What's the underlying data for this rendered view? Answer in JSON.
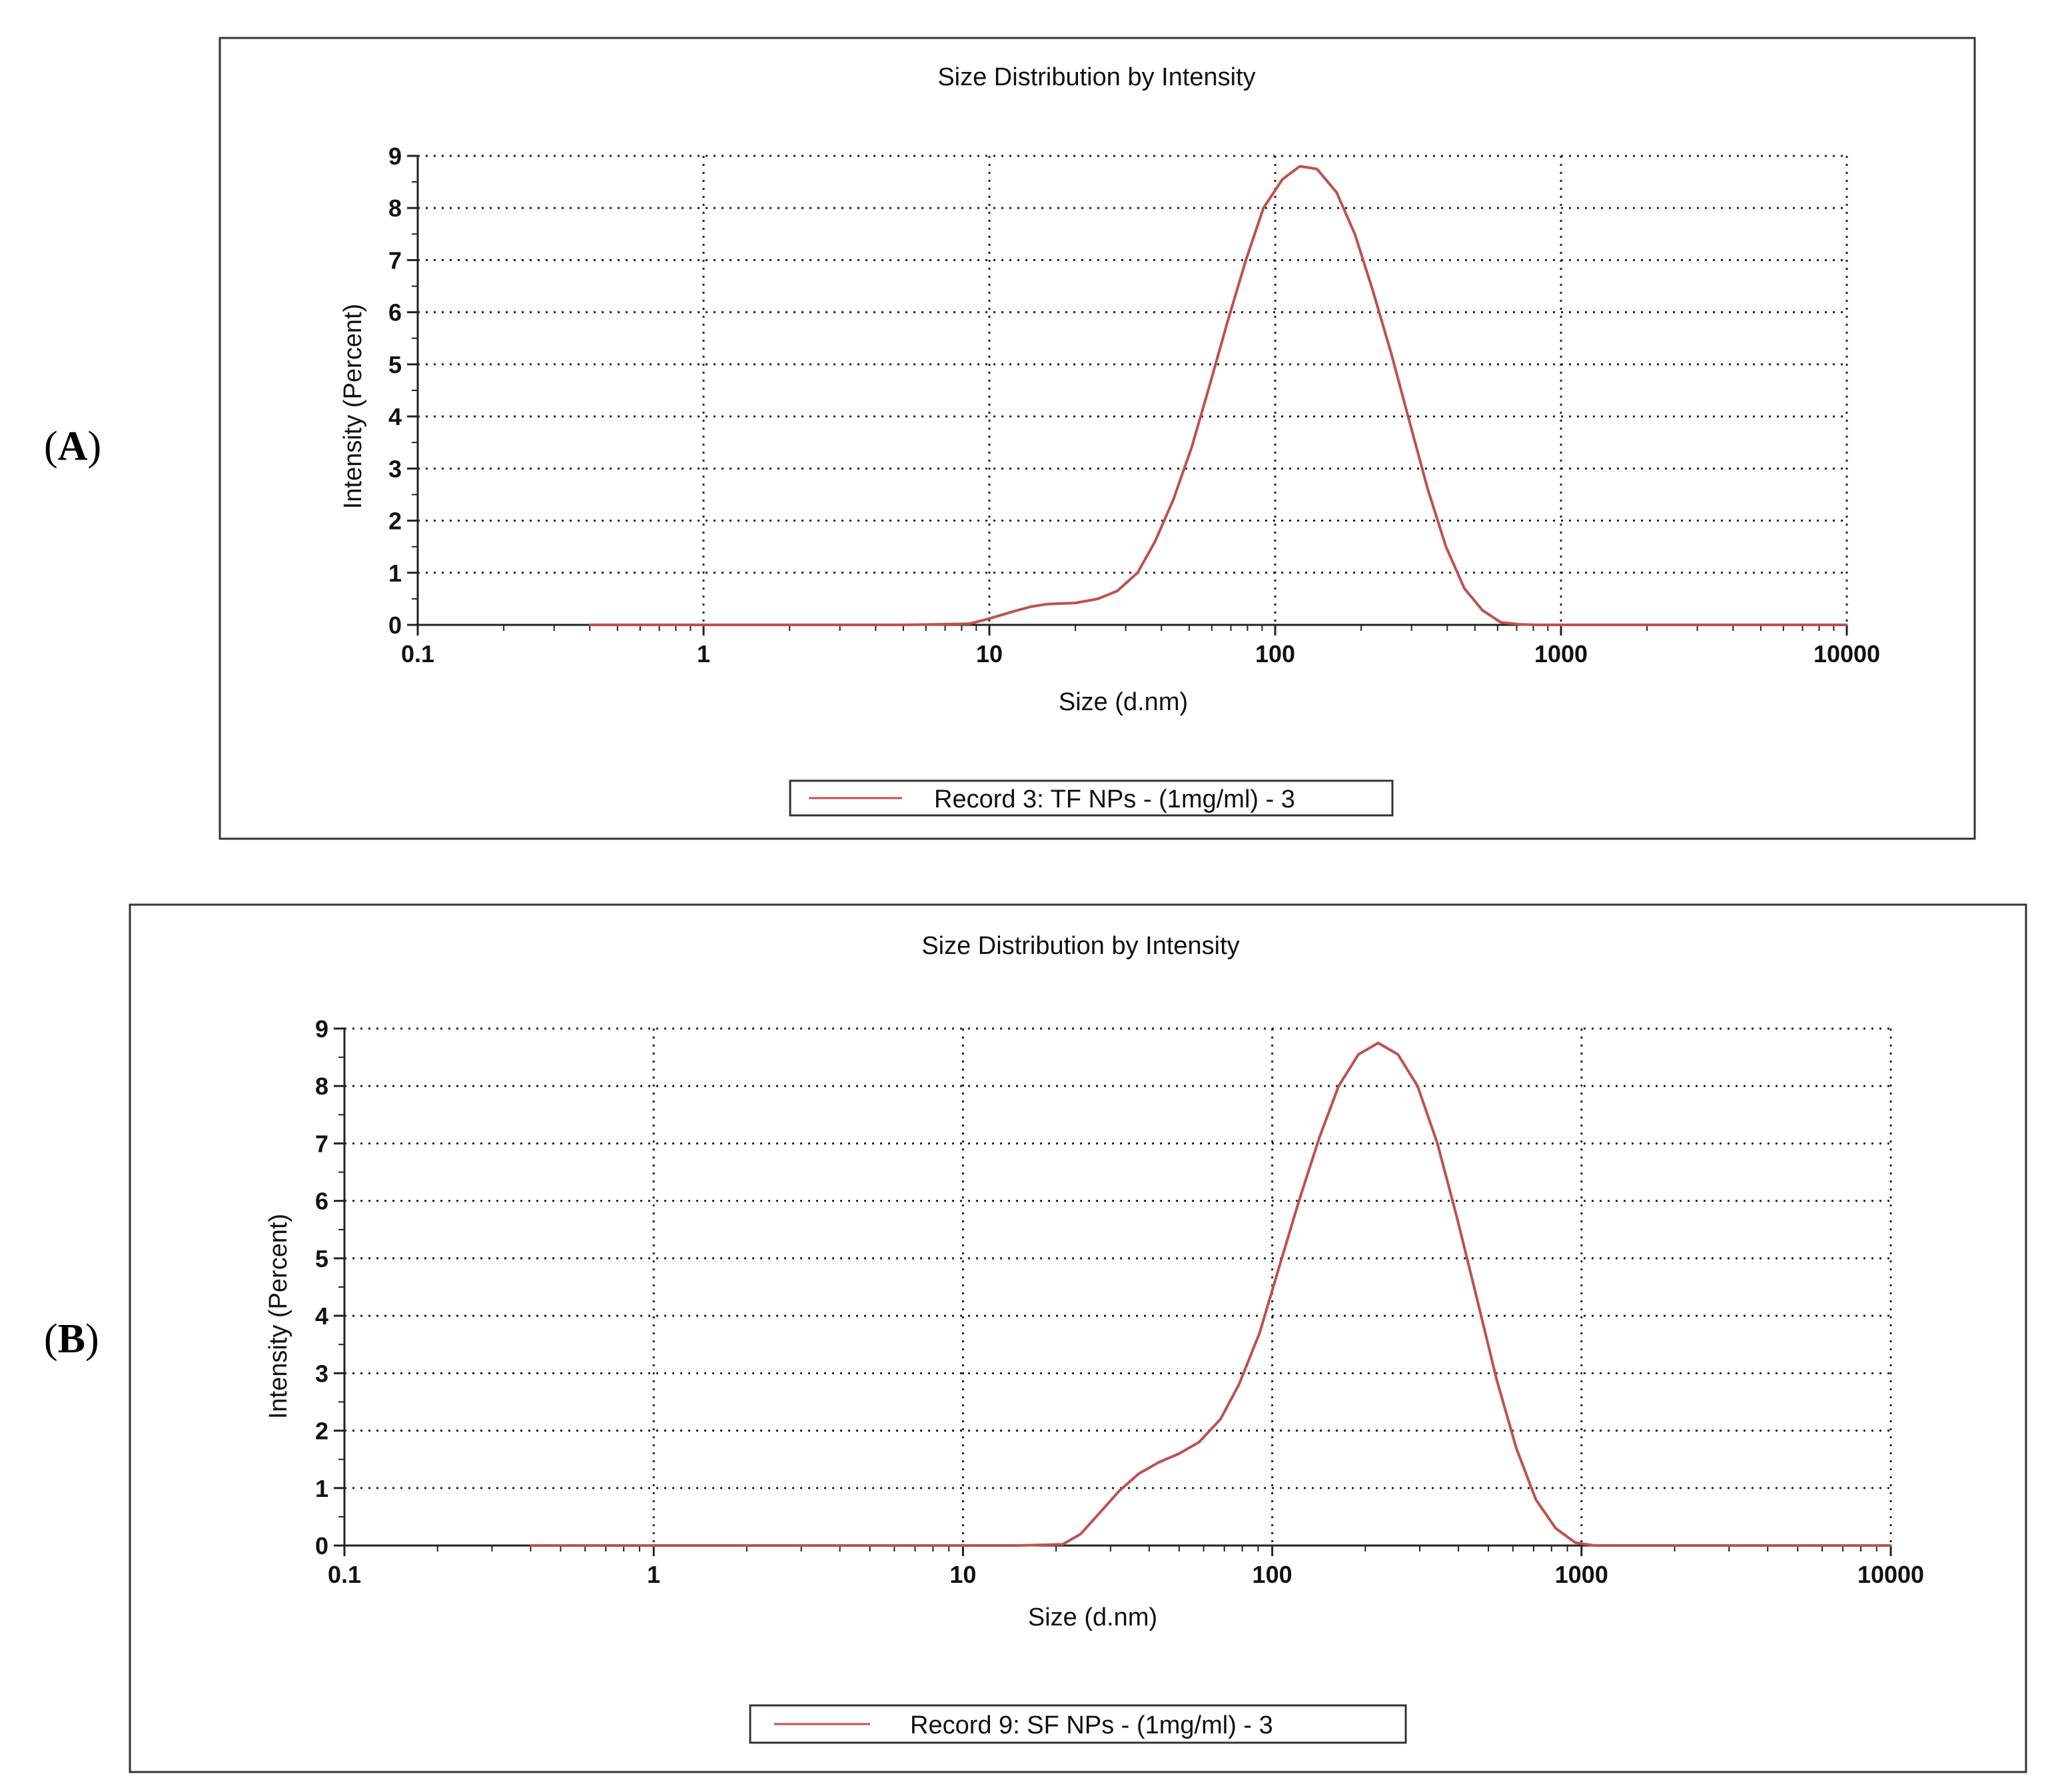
{
  "panels": [
    {
      "label": "A",
      "label_text": "(A)",
      "chart_data": {
        "type": "line",
        "title": "Size Distribution by Intensity",
        "xlabel": "Size (d.nm)",
        "ylabel": "Intensity (Percent)",
        "xscale": "log",
        "xlim": [
          0.1,
          10000
        ],
        "ylim": [
          0,
          9
        ],
        "xticks": [
          0.1,
          1,
          10,
          100,
          1000,
          10000
        ],
        "xtick_labels": [
          "0.1",
          "1",
          "10",
          "100",
          "1000",
          "10000"
        ],
        "yticks": [
          0,
          1,
          2,
          3,
          4,
          5,
          6,
          7,
          8,
          9
        ],
        "ytick_labels": [
          "0",
          "1",
          "2",
          "3",
          "4",
          "5",
          "6",
          "7",
          "8",
          "9"
        ],
        "grid": true,
        "legend": "bottom-center",
        "series": [
          {
            "name": "Record 3: TF NPs - (1mg/ml) -  3",
            "color": "#c0504d",
            "x": [
              0.4,
              1,
              5,
              8.5,
              10,
              12,
              14,
              16,
              20,
              24,
              28,
              33,
              38,
              44,
              51,
              59,
              68,
              79,
              91,
              106,
              122,
              140,
              164,
              190,
              220,
              255,
              295,
              342,
              396,
              459,
              531,
              615,
              712,
              825,
              1000,
              2000,
              5000,
              10000
            ],
            "y": [
              0,
              0,
              0,
              0.02,
              0.12,
              0.25,
              0.35,
              0.4,
              0.42,
              0.5,
              0.65,
              1.0,
              1.6,
              2.4,
              3.4,
              4.6,
              5.8,
              7.0,
              8.0,
              8.55,
              8.8,
              8.75,
              8.3,
              7.5,
              6.4,
              5.2,
              3.9,
              2.6,
              1.5,
              0.7,
              0.28,
              0.05,
              0.01,
              0,
              0,
              0,
              0,
              0
            ]
          }
        ]
      }
    },
    {
      "label": "B",
      "label_text": "(B)",
      "chart_data": {
        "type": "line",
        "title": "Size Distribution by Intensity",
        "xlabel": "Size (d.nm)",
        "ylabel": "Intensity (Percent)",
        "xscale": "log",
        "xlim": [
          0.1,
          10000
        ],
        "ylim": [
          0,
          9
        ],
        "xticks": [
          0.1,
          1,
          10,
          100,
          1000,
          10000
        ],
        "xtick_labels": [
          "0.1",
          "1",
          "10",
          "100",
          "1000",
          "10000"
        ],
        "yticks": [
          0,
          1,
          2,
          3,
          4,
          5,
          6,
          7,
          8,
          9
        ],
        "ytick_labels": [
          "0",
          "1",
          "2",
          "3",
          "4",
          "5",
          "6",
          "7",
          "8",
          "9"
        ],
        "grid": true,
        "legend": "bottom-center",
        "series": [
          {
            "name": "Record 9: SF NPs - (1mg/ml) -  3",
            "color": "#c0504d",
            "x": [
              0.4,
              1,
              5,
              10,
              15,
              21,
              24,
              28,
              32,
              37,
              43,
              50,
              58,
              68,
              78,
              91,
              106,
              122,
              142,
              164,
              190,
              220,
              255,
              295,
              342,
              396,
              459,
              531,
              615,
              712,
              825,
              955,
              1100,
              2000,
              5000,
              10000
            ],
            "y": [
              0,
              0,
              0,
              0,
              0,
              0.02,
              0.2,
              0.6,
              0.95,
              1.25,
              1.45,
              1.6,
              1.8,
              2.2,
              2.8,
              3.7,
              4.9,
              6.0,
              7.1,
              8.0,
              8.55,
              8.75,
              8.55,
              8.0,
              7.0,
              5.7,
              4.3,
              2.9,
              1.7,
              0.8,
              0.3,
              0.05,
              0,
              0,
              0,
              0
            ]
          }
        ]
      }
    }
  ]
}
